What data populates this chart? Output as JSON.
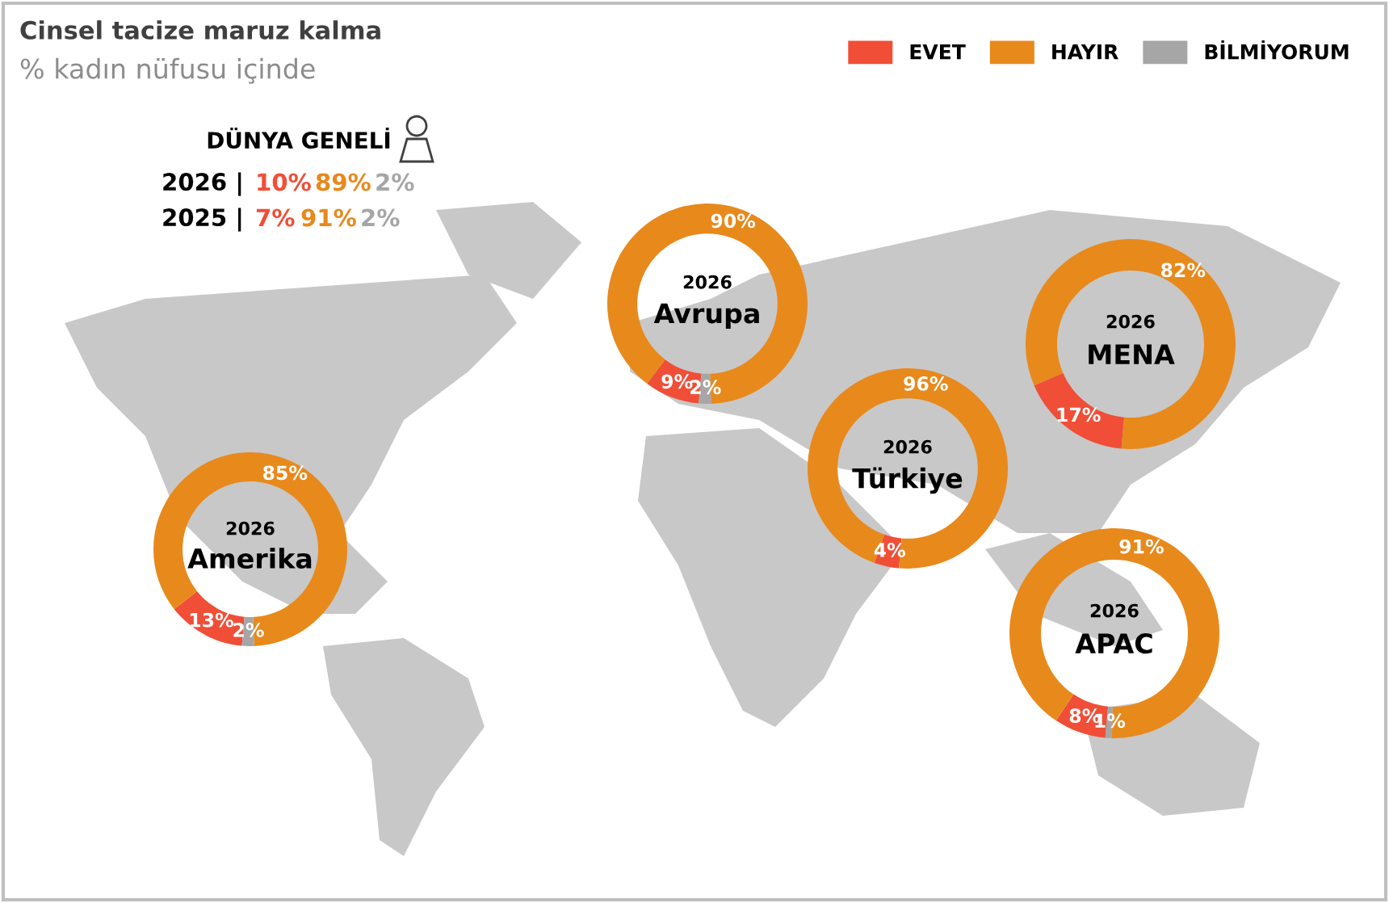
{
  "chart_data": [
    {
      "type": "other",
      "title": "Cinsel tacize maruz kalma",
      "subtitle": "% kadın nüfusu içinde",
      "annotations": [
        "DÜNYA GENELİ"
      ],
      "legend": "top right",
      "categories": [
        "2026 |",
        "2025 |"
      ],
      "series": [
        {
          "name": "EVET",
          "color": "#f04e37",
          "values": [
            10,
            7
          ],
          "value_labels": [
            "10%",
            "7%"
          ]
        },
        {
          "name": "HAYIR",
          "color": "#e8891c",
          "values": [
            89,
            91
          ],
          "value_labels": [
            "89%",
            "91%"
          ]
        },
        {
          "name": "BİLMİYORUM",
          "color": "#a6a6a6",
          "values": [
            2,
            2
          ],
          "value_labels": [
            "2%",
            "2%"
          ]
        }
      ]
    },
    {
      "type": "donut",
      "title": "Avrupa",
      "subtitle": "2026",
      "categories": [
        null,
        null,
        null
      ],
      "colors": [
        "#f04e37",
        "#e8891c",
        "#a6a6a6"
      ],
      "values": [
        9,
        90,
        2
      ],
      "value_labels": [
        "9%",
        "90%",
        "2%"
      ]
    },
    {
      "type": "donut",
      "title": "MENA",
      "subtitle": "2026",
      "categories": [
        null,
        null,
        null
      ],
      "colors": [
        "#f04e37",
        "#e8891c",
        "#a6a6a6"
      ],
      "values": [
        17,
        82,
        null
      ],
      "value_labels": [
        "17%",
        "82%",
        null
      ]
    },
    {
      "type": "donut",
      "title": "Türkiye",
      "subtitle": "2026",
      "categories": [
        null,
        null,
        null
      ],
      "colors": [
        "#f04e37",
        "#e8891c",
        "#a6a6a6"
      ],
      "values": [
        4,
        96,
        null
      ],
      "value_labels": [
        "4%",
        "96%",
        null
      ]
    },
    {
      "type": "donut",
      "title": "Amerika",
      "subtitle": "2026",
      "categories": [
        null,
        null,
        null
      ],
      "colors": [
        "#f04e37",
        "#e8891c",
        "#a6a6a6"
      ],
      "values": [
        13,
        85,
        2
      ],
      "value_labels": [
        "13%",
        "85%",
        "2%"
      ]
    },
    {
      "type": "donut",
      "title": "APAC",
      "subtitle": "2026",
      "categories": [
        null,
        null,
        null
      ],
      "colors": [
        "#f04e37",
        "#e8891c",
        "#a6a6a6"
      ],
      "values": [
        8,
        91,
        1
      ],
      "value_labels": [
        "8%",
        "91%",
        "1%"
      ]
    }
  ]
}
